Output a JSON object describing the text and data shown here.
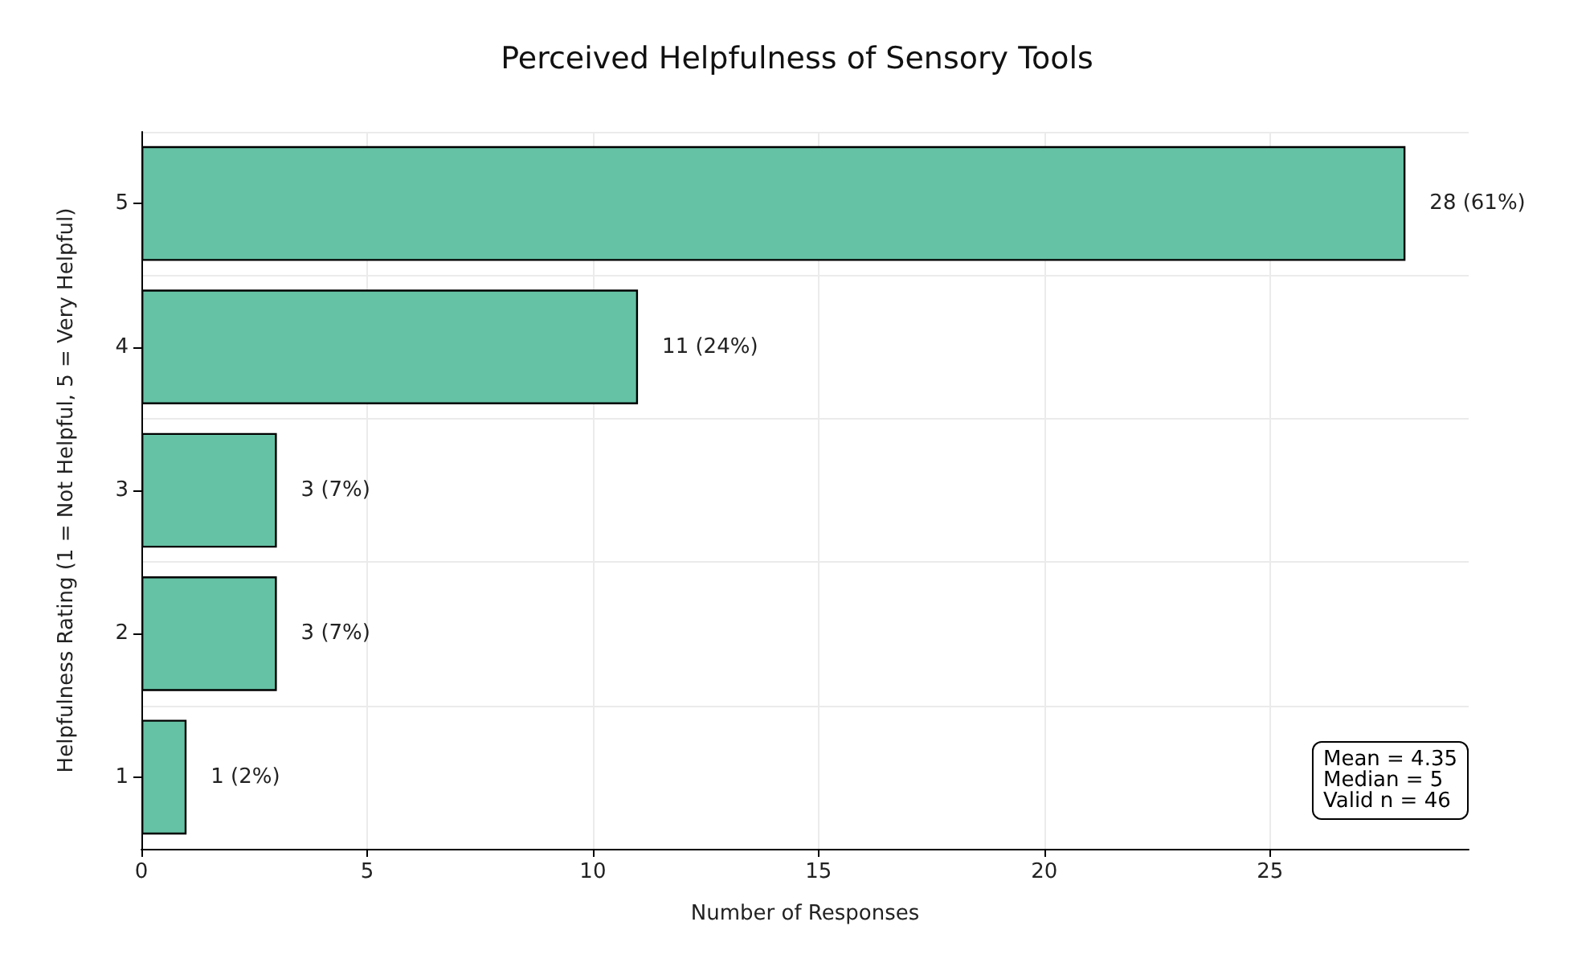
{
  "chart_data": {
    "type": "bar",
    "orientation": "horizontal",
    "title": "Perceived Helpfulness of Sensory Tools",
    "xlabel": "Number of Responses",
    "ylabel": "Helpfulness Rating (1 = Not Helpful, 5 = Very Helpful)",
    "categories": [
      "5",
      "4",
      "3",
      "2",
      "1"
    ],
    "values": [
      28,
      11,
      3,
      3,
      1
    ],
    "value_labels": [
      "28 (61%)",
      "11 (24%)",
      "3 (7%)",
      "3 (7%)",
      "1 (2%)"
    ],
    "color": "#66c2a5",
    "xlim": [
      0,
      29.4
    ],
    "xticks": [
      0,
      5,
      10,
      15,
      20,
      25
    ],
    "grid": true,
    "annotations": [
      "Mean = 4.35\nMedian = 5\nValid n = 46"
    ]
  }
}
